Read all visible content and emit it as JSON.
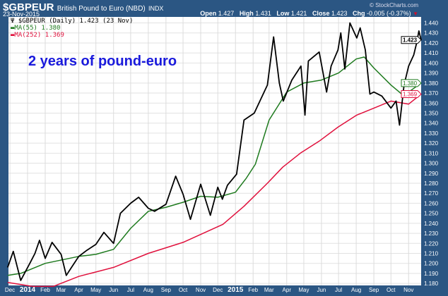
{
  "header": {
    "symbol": "$GBPEUR",
    "name": "British Pound to Euro (NBD)",
    "exchange": "INDX",
    "date": "23-Nov-2015",
    "copyright": "© StockCharts.com",
    "open_label": "Open",
    "open": "1.427",
    "high_label": "High",
    "high": "1.431",
    "low_label": "Low",
    "low": "1.421",
    "close_label": "Close",
    "close": "1.423",
    "chg_label": "Chg",
    "chg": "-0.005 (-0.37%)"
  },
  "legend": {
    "price": "$GBPEUR (Daily) 1.423 (23 Nov)",
    "ma55": "MA(55) 1.380",
    "ma252": "MA(252) 1.369"
  },
  "annotation": "2 years of pound-euro",
  "chart_data": {
    "type": "line",
    "ylim": [
      1.178,
      1.446
    ],
    "xlim": [
      "2013-11-25",
      "2015-11-23"
    ],
    "grid": true,
    "y_ticks": [
      "1.180",
      "1.190",
      "1.200",
      "1.210",
      "1.220",
      "1.230",
      "1.240",
      "1.250",
      "1.260",
      "1.270",
      "1.280",
      "1.290",
      "1.300",
      "1.310",
      "1.320",
      "1.330",
      "1.340",
      "1.350",
      "1.360",
      "1.370",
      "1.380",
      "1.390",
      "1.400",
      "1.410",
      "1.420",
      "1.430",
      "1.440"
    ],
    "x_ticks": [
      {
        "date": "2013-12-01",
        "label": "Dec"
      },
      {
        "date": "2014-01-01",
        "label": "2014",
        "bold": true
      },
      {
        "date": "2014-02-01",
        "label": "Feb"
      },
      {
        "date": "2014-03-01",
        "label": "Mar"
      },
      {
        "date": "2014-04-01",
        "label": "Apr"
      },
      {
        "date": "2014-05-01",
        "label": "May"
      },
      {
        "date": "2014-06-01",
        "label": "Jun"
      },
      {
        "date": "2014-07-01",
        "label": "Jul"
      },
      {
        "date": "2014-08-01",
        "label": "Aug"
      },
      {
        "date": "2014-09-01",
        "label": "Sep"
      },
      {
        "date": "2014-10-01",
        "label": "Oct"
      },
      {
        "date": "2014-11-01",
        "label": "Nov"
      },
      {
        "date": "2014-12-01",
        "label": "Dec"
      },
      {
        "date": "2015-01-01",
        "label": "2015",
        "bold": true
      },
      {
        "date": "2015-02-01",
        "label": "Feb"
      },
      {
        "date": "2015-03-01",
        "label": "Mar"
      },
      {
        "date": "2015-04-01",
        "label": "Apr"
      },
      {
        "date": "2015-05-01",
        "label": "May"
      },
      {
        "date": "2015-06-01",
        "label": "Jun"
      },
      {
        "date": "2015-07-01",
        "label": "Jul"
      },
      {
        "date": "2015-08-01",
        "label": "Aug"
      },
      {
        "date": "2015-09-01",
        "label": "Sep"
      },
      {
        "date": "2015-10-01",
        "label": "Oct"
      },
      {
        "date": "2015-11-01",
        "label": "Nov"
      }
    ],
    "series": [
      {
        "name": "$GBPEUR",
        "color": "#000000",
        "tag": "1.423",
        "points": [
          [
            "2013-11-27",
            1.196
          ],
          [
            "2013-12-07",
            1.212
          ],
          [
            "2013-12-20",
            1.183
          ],
          [
            "2014-01-05",
            1.2
          ],
          [
            "2014-01-14",
            1.21
          ],
          [
            "2014-01-22",
            1.223
          ],
          [
            "2014-02-01",
            1.205
          ],
          [
            "2014-02-13",
            1.221
          ],
          [
            "2014-03-01",
            1.209
          ],
          [
            "2014-03-10",
            1.188
          ],
          [
            "2014-03-18",
            1.195
          ],
          [
            "2014-04-01",
            1.207
          ],
          [
            "2014-04-15",
            1.213
          ],
          [
            "2014-05-01",
            1.219
          ],
          [
            "2014-05-15",
            1.231
          ],
          [
            "2014-06-01",
            1.22
          ],
          [
            "2014-06-13",
            1.25
          ],
          [
            "2014-07-01",
            1.26
          ],
          [
            "2014-07-15",
            1.266
          ],
          [
            "2014-08-01",
            1.255
          ],
          [
            "2014-08-12",
            1.252
          ],
          [
            "2014-09-01",
            1.259
          ],
          [
            "2014-09-18",
            1.287
          ],
          [
            "2014-10-01",
            1.269
          ],
          [
            "2014-10-14",
            1.244
          ],
          [
            "2014-11-01",
            1.279
          ],
          [
            "2014-11-18",
            1.248
          ],
          [
            "2014-12-01",
            1.276
          ],
          [
            "2014-12-09",
            1.264
          ],
          [
            "2014-12-18",
            1.278
          ],
          [
            "2015-01-03",
            1.289
          ],
          [
            "2015-01-16",
            1.343
          ],
          [
            "2015-02-03",
            1.35
          ],
          [
            "2015-02-26",
            1.378
          ],
          [
            "2015-03-09",
            1.426
          ],
          [
            "2015-03-19",
            1.38
          ],
          [
            "2015-03-26",
            1.362
          ],
          [
            "2015-04-10",
            1.383
          ],
          [
            "2015-04-26",
            1.397
          ],
          [
            "2015-05-03",
            1.348
          ],
          [
            "2015-05-09",
            1.402
          ],
          [
            "2015-05-28",
            1.411
          ],
          [
            "2015-06-10",
            1.371
          ],
          [
            "2015-06-18",
            1.397
          ],
          [
            "2015-06-30",
            1.413
          ],
          [
            "2015-07-05",
            1.43
          ],
          [
            "2015-07-12",
            1.394
          ],
          [
            "2015-07-21",
            1.44
          ],
          [
            "2015-08-02",
            1.425
          ],
          [
            "2015-08-08",
            1.435
          ],
          [
            "2015-08-17",
            1.413
          ],
          [
            "2015-08-25",
            1.369
          ],
          [
            "2015-09-01",
            1.371
          ],
          [
            "2015-09-15",
            1.367
          ],
          [
            "2015-10-01",
            1.355
          ],
          [
            "2015-10-10",
            1.362
          ],
          [
            "2015-10-16",
            1.338
          ],
          [
            "2015-10-24",
            1.378
          ],
          [
            "2015-11-01",
            1.397
          ],
          [
            "2015-11-10",
            1.408
          ],
          [
            "2015-11-15",
            1.42
          ],
          [
            "2015-11-19",
            1.432
          ],
          [
            "2015-11-23",
            1.423
          ]
        ]
      },
      {
        "name": "MA(55)",
        "color": "#1e7a1e",
        "tag": "1.380",
        "points": [
          [
            "2013-11-27",
            1.188
          ],
          [
            "2013-12-20",
            1.19
          ],
          [
            "2014-02-01",
            1.2
          ],
          [
            "2014-04-01",
            1.207
          ],
          [
            "2014-05-01",
            1.209
          ],
          [
            "2014-06-01",
            1.214
          ],
          [
            "2014-07-01",
            1.235
          ],
          [
            "2014-08-01",
            1.252
          ],
          [
            "2014-09-01",
            1.256
          ],
          [
            "2014-10-01",
            1.261
          ],
          [
            "2014-11-01",
            1.267
          ],
          [
            "2014-12-01",
            1.266
          ],
          [
            "2015-01-01",
            1.271
          ],
          [
            "2015-01-20",
            1.285
          ],
          [
            "2015-02-05",
            1.299
          ],
          [
            "2015-03-01",
            1.343
          ],
          [
            "2015-04-01",
            1.371
          ],
          [
            "2015-05-01",
            1.38
          ],
          [
            "2015-06-01",
            1.383
          ],
          [
            "2015-07-01",
            1.39
          ],
          [
            "2015-08-01",
            1.404
          ],
          [
            "2015-08-15",
            1.406
          ],
          [
            "2015-09-01",
            1.395
          ],
          [
            "2015-10-01",
            1.378
          ],
          [
            "2015-10-20",
            1.369
          ],
          [
            "2015-11-01",
            1.371
          ],
          [
            "2015-11-23",
            1.38
          ]
        ]
      },
      {
        "name": "MA(252)",
        "color": "#e0103c",
        "tag": "1.369",
        "points": [
          [
            "2013-11-27",
            1.181
          ],
          [
            "2014-01-10",
            1.177
          ],
          [
            "2014-02-15",
            1.177
          ],
          [
            "2014-04-01",
            1.187
          ],
          [
            "2014-06-01",
            1.196
          ],
          [
            "2014-08-01",
            1.21
          ],
          [
            "2014-10-01",
            1.221
          ],
          [
            "2014-12-10",
            1.239
          ],
          [
            "2015-01-16",
            1.257
          ],
          [
            "2015-02-26",
            1.28
          ],
          [
            "2015-03-25",
            1.296
          ],
          [
            "2015-04-25",
            1.31
          ],
          [
            "2015-05-28",
            1.322
          ],
          [
            "2015-06-30",
            1.336
          ],
          [
            "2015-08-02",
            1.348
          ],
          [
            "2015-09-01",
            1.355
          ],
          [
            "2015-10-01",
            1.362
          ],
          [
            "2015-11-01",
            1.359
          ],
          [
            "2015-11-23",
            1.369
          ]
        ]
      }
    ]
  }
}
